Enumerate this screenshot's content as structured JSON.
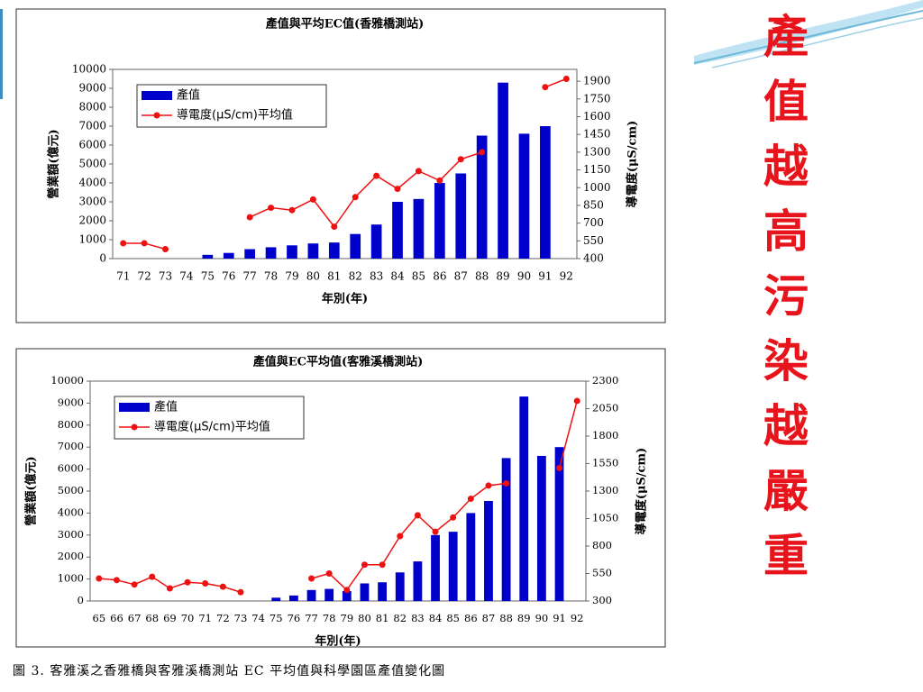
{
  "slide_title": "產值越高污染越嚴重",
  "caption": "圖 3. 客雅溪之香雅橋與客雅溪橋測站 EC 平均值與科學園區產值變化圖",
  "chart_data": [
    {
      "type": "bar",
      "title": "產值與平均EC值(香雅橋測站)",
      "xlabel": "年別(年)",
      "ylabel": "營業額(億元)",
      "y2label": "導電度(μS/cm)",
      "categories": [
        "71",
        "72",
        "73",
        "74",
        "75",
        "76",
        "77",
        "78",
        "79",
        "80",
        "81",
        "82",
        "83",
        "84",
        "85",
        "86",
        "87",
        "88",
        "89",
        "90",
        "91",
        "92"
      ],
      "series": [
        {
          "name": "產值",
          "type": "bar",
          "color": "#0000cc",
          "axis": "y",
          "values": [
            null,
            null,
            null,
            null,
            200,
            300,
            500,
            600,
            700,
            800,
            850,
            1300,
            1800,
            3000,
            3150,
            4000,
            4500,
            6500,
            9300,
            6600,
            7000,
            null
          ]
        },
        {
          "name": "導電度(μS/cm)平均值",
          "type": "line",
          "color": "#ee1111",
          "axis": "y2",
          "values": [
            530,
            530,
            480,
            null,
            null,
            null,
            750,
            830,
            810,
            900,
            670,
            920,
            1100,
            990,
            1140,
            1060,
            1240,
            1300,
            null,
            null,
            1850,
            1920
          ]
        }
      ],
      "ylim": [
        0,
        10000
      ],
      "yticks": [
        0,
        1000,
        2000,
        3000,
        4000,
        5000,
        6000,
        7000,
        8000,
        9000,
        10000
      ],
      "y2lim": [
        400,
        2000
      ],
      "y2ticks": [
        400,
        550,
        700,
        850,
        1000,
        1150,
        1300,
        1450,
        1600,
        1750,
        1900
      ],
      "legend": "upper left"
    },
    {
      "type": "bar",
      "title": "產值與EC平均值(客雅溪橋測站)",
      "xlabel": "年別(年)",
      "ylabel": "營業額(億元)",
      "y2label": "導電度(μS/cm)",
      "categories": [
        "65",
        "66",
        "67",
        "68",
        "69",
        "70",
        "71",
        "72",
        "73",
        "74",
        "75",
        "76",
        "77",
        "78",
        "79",
        "80",
        "81",
        "82",
        "83",
        "84",
        "85",
        "86",
        "87",
        "88",
        "89",
        "90",
        "91",
        "92"
      ],
      "series": [
        {
          "name": "產值",
          "type": "bar",
          "color": "#0000cc",
          "axis": "y",
          "values": [
            null,
            null,
            null,
            null,
            null,
            null,
            null,
            null,
            null,
            null,
            150,
            250,
            500,
            550,
            450,
            800,
            850,
            1300,
            1800,
            3000,
            3150,
            4000,
            4550,
            6500,
            9300,
            6600,
            7000,
            null
          ]
        },
        {
          "name": "導電度(μS/cm)平均值",
          "type": "line",
          "color": "#ee1111",
          "axis": "y2",
          "values": [
            505,
            490,
            450,
            520,
            415,
            470,
            460,
            430,
            380,
            null,
            null,
            null,
            505,
            550,
            400,
            630,
            630,
            890,
            1080,
            930,
            1060,
            1230,
            1350,
            1370,
            null,
            null,
            1510,
            2120
          ]
        }
      ],
      "ylim": [
        0,
        10000
      ],
      "yticks": [
        0,
        1000,
        2000,
        3000,
        4000,
        5000,
        6000,
        7000,
        8000,
        9000,
        10000
      ],
      "y2lim": [
        300,
        2300
      ],
      "y2ticks": [
        300,
        550,
        800,
        1050,
        1300,
        1550,
        1800,
        2050,
        2300
      ],
      "legend": "upper left"
    }
  ]
}
